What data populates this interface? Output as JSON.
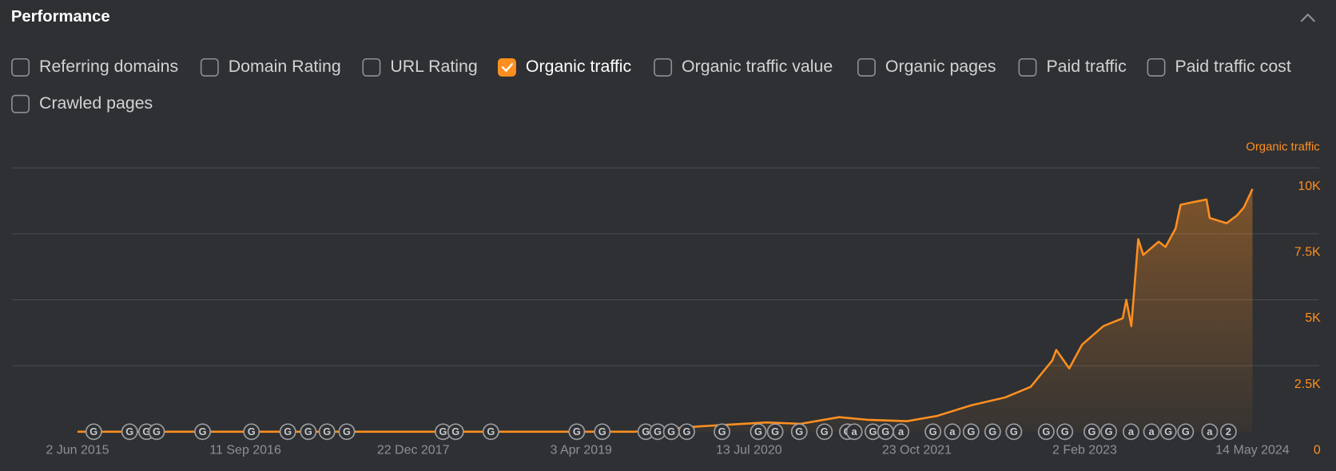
{
  "header": {
    "title": "Performance"
  },
  "filters": [
    {
      "label": "Referring domains",
      "checked": false
    },
    {
      "label": "Domain Rating",
      "checked": false
    },
    {
      "label": "URL Rating",
      "checked": false
    },
    {
      "label": "Organic traffic",
      "checked": true
    },
    {
      "label": "Organic traffic value",
      "checked": false
    },
    {
      "label": "Organic pages",
      "checked": false
    },
    {
      "label": "Paid traffic",
      "checked": false
    },
    {
      "label": "Paid traffic cost",
      "checked": false
    },
    {
      "label": "Crawled pages",
      "checked": false
    }
  ],
  "chart_data": {
    "type": "line",
    "ylabel": "Organic traffic",
    "x": [
      "2015-06-02",
      "2019-08-29",
      "2020-02-24",
      "2020-08-31",
      "2020-12-04",
      "2021-03-21",
      "2021-06-12",
      "2021-09-26",
      "2021-12-19",
      "2022-03-23",
      "2022-06-26",
      "2022-09-05",
      "2022-11-04",
      "2022-11-15",
      "2022-12-21",
      "2023-01-26",
      "2023-03-26",
      "2023-05-19",
      "2023-05-29",
      "2023-06-12",
      "2023-07-01",
      "2023-07-15",
      "2023-08-27",
      "2023-09-15",
      "2023-10-13",
      "2023-10-27",
      "2023-11-30",
      "2024-01-07",
      "2024-01-16",
      "2024-03-03",
      "2024-04-01",
      "2024-04-20",
      "2024-05-14"
    ],
    "series": [
      {
        "color": "#ff8f1f",
        "values": [
          0,
          0,
          200,
          350,
          300,
          550,
          450,
          400,
          600,
          1000,
          1300,
          1700,
          2700,
          3100,
          2400,
          3300,
          4000,
          4300,
          5000,
          4000,
          7300,
          6700,
          7200,
          7000,
          7700,
          8600,
          8700,
          8800,
          8100,
          7900,
          8200,
          8500,
          9200
        ]
      }
    ],
    "xlim": [
      "2015-06-02",
      "2024-05-14"
    ],
    "xticks": [
      {
        "value": "2015-06-02",
        "label": "2 Jun 2015"
      },
      {
        "value": "2016-09-11",
        "label": "11 Sep 2016"
      },
      {
        "value": "2017-12-22",
        "label": "22 Dec 2017"
      },
      {
        "value": "2019-04-03",
        "label": "3 Apr 2019"
      },
      {
        "value": "2020-07-13",
        "label": "13 Jul 2020"
      },
      {
        "value": "2021-10-23",
        "label": "23 Oct 2021"
      },
      {
        "value": "2023-02-02",
        "label": "2 Feb 2023"
      },
      {
        "value": "2024-05-14",
        "label": "14 May 2024"
      }
    ],
    "ylim": [
      0,
      10000
    ],
    "yticks": [
      0,
      {
        "value": 2500,
        "label": "2.5K"
      },
      {
        "value": 5000,
        "label": "5K"
      },
      {
        "value": 7500,
        "label": "7.5K"
      },
      {
        "value": 10000,
        "label": "10K"
      }
    ],
    "grid": true,
    "annotations": [
      {
        "x": "2015-07-17",
        "label": "G"
      },
      {
        "x": "2015-10-25",
        "label": "G"
      },
      {
        "x": "2015-12-11",
        "label": "G"
      },
      {
        "x": "2016-01-08",
        "label": "G"
      },
      {
        "x": "2016-05-15",
        "label": "G"
      },
      {
        "x": "2016-09-28",
        "label": "G"
      },
      {
        "x": "2017-01-07",
        "label": "G"
      },
      {
        "x": "2017-03-05",
        "label": "G"
      },
      {
        "x": "2017-04-26",
        "label": "G"
      },
      {
        "x": "2017-06-20",
        "label": "G"
      },
      {
        "x": "2018-03-15",
        "label": "G"
      },
      {
        "x": "2018-04-19",
        "label": "G"
      },
      {
        "x": "2018-07-26",
        "label": "G"
      },
      {
        "x": "2019-03-22",
        "label": "G"
      },
      {
        "x": "2019-06-01",
        "label": "G"
      },
      {
        "x": "2019-09-30",
        "label": "G"
      },
      {
        "x": "2019-11-02",
        "label": "G"
      },
      {
        "x": "2019-12-10",
        "label": "G"
      },
      {
        "x": "2020-01-22",
        "label": "G"
      },
      {
        "x": "2020-04-29",
        "label": "G"
      },
      {
        "x": "2020-08-08",
        "label": "G"
      },
      {
        "x": "2020-09-24",
        "label": "G"
      },
      {
        "x": "2020-11-30",
        "label": "G"
      },
      {
        "x": "2021-02-08",
        "label": "G"
      },
      {
        "x": "2021-04-13",
        "label": "G"
      },
      {
        "x": "2021-05-02",
        "label": "a"
      },
      {
        "x": "2021-06-23",
        "label": "G"
      },
      {
        "x": "2021-07-28",
        "label": "G"
      },
      {
        "x": "2021-09-09",
        "label": "a"
      },
      {
        "x": "2021-12-07",
        "label": "G"
      },
      {
        "x": "2022-01-30",
        "label": "a"
      },
      {
        "x": "2022-03-23",
        "label": "G"
      },
      {
        "x": "2022-05-22",
        "label": "G"
      },
      {
        "x": "2022-07-20",
        "label": "G"
      },
      {
        "x": "2022-10-18",
        "label": "G"
      },
      {
        "x": "2022-12-09",
        "label": "G"
      },
      {
        "x": "2023-02-22",
        "label": "G"
      },
      {
        "x": "2023-04-10",
        "label": "G"
      },
      {
        "x": "2023-06-11",
        "label": "a"
      },
      {
        "x": "2023-08-07",
        "label": "a"
      },
      {
        "x": "2023-09-23",
        "label": "G"
      },
      {
        "x": "2023-11-10",
        "label": "G"
      },
      {
        "x": "2024-01-16",
        "label": "a"
      },
      {
        "x": "2024-03-08",
        "label": "2"
      }
    ]
  }
}
